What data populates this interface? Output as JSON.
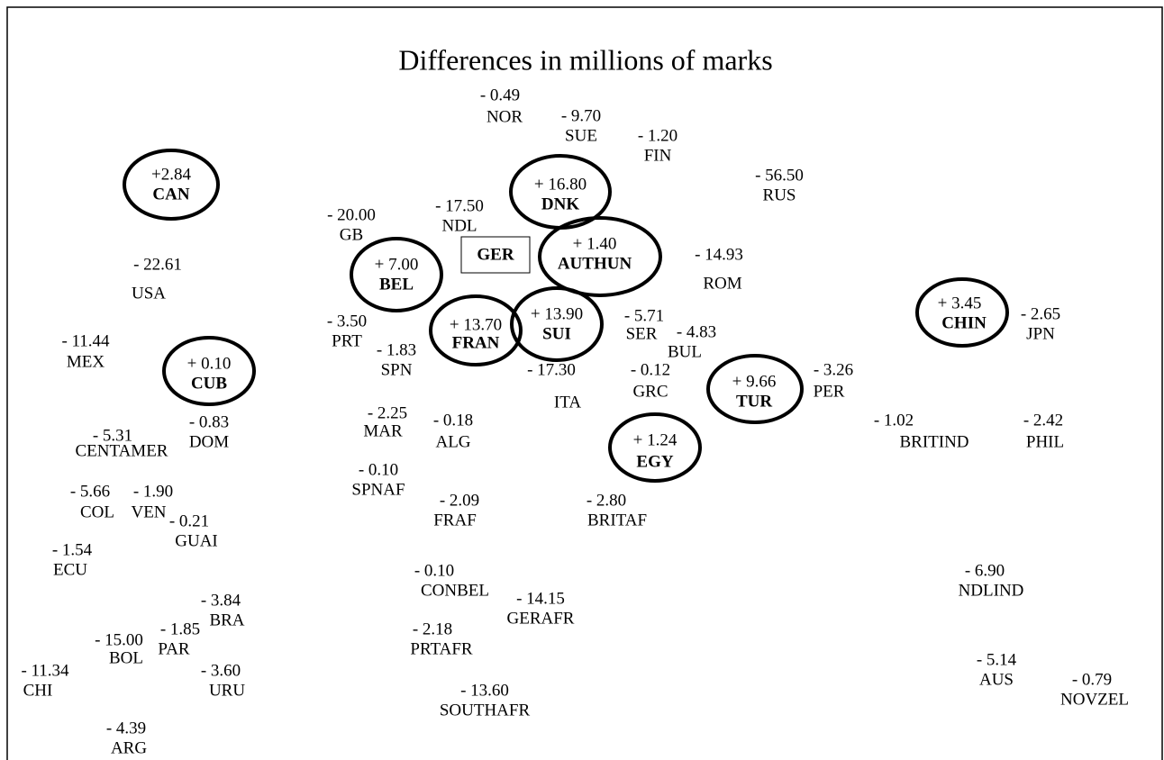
{
  "title": "Differences in millions of marks",
  "nodes": [
    {
      "code": "NOR",
      "value": "- 0.49"
    },
    {
      "code": "SUE",
      "value": "- 9.70"
    },
    {
      "code": "FIN",
      "value": "- 1.20"
    },
    {
      "code": "RUS",
      "value": "- 56.50"
    },
    {
      "code": "CAN",
      "value": "+2.84"
    },
    {
      "code": "DNK",
      "value": "+ 16.80"
    },
    {
      "code": "NDL",
      "value": "- 17.50"
    },
    {
      "code": "GB",
      "value": "- 20.00"
    },
    {
      "code": "GER"
    },
    {
      "code": "AUTHUN",
      "value": "+ 1.40"
    },
    {
      "code": "ROM",
      "value": "- 14.93"
    },
    {
      "code": "BEL",
      "value": "+ 7.00"
    },
    {
      "code": "USA",
      "value": "- 22.61"
    },
    {
      "code": "SUI",
      "value": "+ 13.90"
    },
    {
      "code": "FRAN",
      "value": "+ 13.70"
    },
    {
      "code": "SER",
      "value": "- 5.71"
    },
    {
      "code": "BUL",
      "value": "- 4.83"
    },
    {
      "code": "PRT",
      "value": "- 3.50"
    },
    {
      "code": "SPN",
      "value": "- 1.83"
    },
    {
      "code": "CHIN",
      "value": "+ 3.45"
    },
    {
      "code": "JPN",
      "value": "- 2.65"
    },
    {
      "code": "MEX",
      "value": "- 11.44"
    },
    {
      "code": "CUB",
      "value": "+ 0.10"
    },
    {
      "code": "ITA",
      "value": "- 17.30"
    },
    {
      "code": "GRC",
      "value": "- 0.12"
    },
    {
      "code": "TUR",
      "value": "+ 9.66"
    },
    {
      "code": "PER",
      "value": "- 3.26"
    },
    {
      "code": "DOM",
      "value": "- 0.83"
    },
    {
      "code": "CENTAMER",
      "value": "- 5.31"
    },
    {
      "code": "MAR",
      "value": "- 2.25"
    },
    {
      "code": "ALG",
      "value": "- 0.18"
    },
    {
      "code": "EGY",
      "value": "+ 1.24"
    },
    {
      "code": "BRITIND",
      "value": "- 1.02"
    },
    {
      "code": "PHIL",
      "value": "- 2.42"
    },
    {
      "code": "SPNAF",
      "value": "- 0.10"
    },
    {
      "code": "COL",
      "value": "- 5.66"
    },
    {
      "code": "VEN",
      "value": "- 1.90"
    },
    {
      "code": "FRAF",
      "value": "- 2.09"
    },
    {
      "code": "BRITAF",
      "value": "- 2.80"
    },
    {
      "code": "GUAI",
      "value": "- 0.21"
    },
    {
      "code": "ECU",
      "value": "- 1.54"
    },
    {
      "code": "NDLIND",
      "value": "- 6.90"
    },
    {
      "code": "CONBEL",
      "value": "- 0.10"
    },
    {
      "code": "GERAFR",
      "value": "- 14.15"
    },
    {
      "code": "BRA",
      "value": "- 3.84"
    },
    {
      "code": "PRTAFR",
      "value": "- 2.18"
    },
    {
      "code": "PAR",
      "value": "- 1.85"
    },
    {
      "code": "BOL",
      "value": "- 15.00"
    },
    {
      "code": "AUS",
      "value": "- 5.14"
    },
    {
      "code": "NOVZEL",
      "value": "- 0.79"
    },
    {
      "code": "CHI",
      "value": "- 11.34"
    },
    {
      "code": "URU",
      "value": "- 3.60"
    },
    {
      "code": "SOUTHAFR",
      "value": "- 13.60"
    },
    {
      "code": "ARG",
      "value": "- 4.39"
    }
  ]
}
